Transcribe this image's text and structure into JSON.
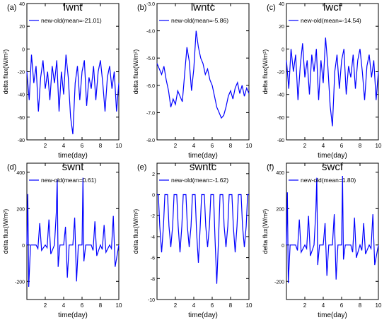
{
  "chart_data": [
    {
      "type": "line",
      "panel_label": "(a)",
      "title": "lwnt",
      "xlabel": "time(day)",
      "ylabel": "delta flux(W/m²)",
      "xlim": [
        0,
        10
      ],
      "ylim": [
        -80,
        40
      ],
      "xticks": [
        "2",
        "4",
        "6",
        "8",
        "10"
      ],
      "xtick_values": [
        2,
        4,
        6,
        8,
        10
      ],
      "yticks": [
        "40",
        "20",
        "0",
        "-20",
        "-40",
        "-60",
        "-80"
      ],
      "ytick_values": [
        40,
        20,
        0,
        -20,
        -40,
        -60,
        -80
      ],
      "legend": "new-old(mean=-21.01)",
      "legend_position": "top-left",
      "color": "#0000ff",
      "series": [
        {
          "x": [
            0.0,
            0.25,
            0.5,
            0.75,
            1.0,
            1.25,
            1.5,
            1.75,
            2.0,
            2.25,
            2.5,
            2.75,
            3.0,
            3.25,
            3.5,
            3.75,
            4.0,
            4.25,
            4.5,
            4.75,
            5.0,
            5.25,
            5.5,
            5.75,
            6.0,
            6.25,
            6.5,
            6.75,
            7.0,
            7.25,
            7.5,
            7.75,
            8.0,
            8.25,
            8.5,
            8.75,
            9.0,
            9.25,
            9.5,
            9.75,
            10.0
          ],
          "y": [
            -20,
            -45,
            -5,
            -30,
            -15,
            -55,
            -25,
            -10,
            -35,
            -20,
            -45,
            -15,
            -30,
            -10,
            -55,
            -20,
            -40,
            -5,
            -25,
            -60,
            -75,
            -30,
            -15,
            -45,
            -20,
            -10,
            -50,
            -25,
            -35,
            -15,
            -45,
            -20,
            -10,
            -30,
            -55,
            -25,
            -15,
            -35,
            -20,
            -55,
            -30
          ]
        }
      ]
    },
    {
      "type": "line",
      "panel_label": "(b)",
      "title": "lwntc",
      "xlabel": "time(day)",
      "ylabel": "delta flux(W/m²)",
      "xlim": [
        0,
        10
      ],
      "ylim": [
        -8.0,
        -3.0
      ],
      "xticks": [
        "2",
        "4",
        "6",
        "8",
        "10"
      ],
      "xtick_values": [
        2,
        4,
        6,
        8,
        10
      ],
      "yticks": [
        "-3.0",
        "-4.0",
        "-5.0",
        "-6.0",
        "-7.0",
        "-8.0"
      ],
      "ytick_values": [
        -3,
        -4,
        -5,
        -6,
        -7,
        -8
      ],
      "legend": "new-old(mean=-5.86)",
      "legend_position": "top-left",
      "color": "#0000ff",
      "series": [
        {
          "x": [
            0.0,
            0.25,
            0.5,
            0.75,
            1.0,
            1.25,
            1.5,
            1.75,
            2.0,
            2.25,
            2.5,
            2.75,
            3.0,
            3.25,
            3.5,
            3.75,
            4.0,
            4.25,
            4.5,
            4.75,
            5.0,
            5.25,
            5.5,
            5.75,
            6.0,
            6.25,
            6.5,
            6.75,
            7.0,
            7.25,
            7.5,
            7.75,
            8.0,
            8.25,
            8.5,
            8.75,
            9.0,
            9.25,
            9.5,
            9.75,
            10.0
          ],
          "y": [
            -5.2,
            -5.4,
            -5.6,
            -5.3,
            -5.8,
            -6.2,
            -6.8,
            -6.5,
            -6.7,
            -6.2,
            -6.4,
            -6.6,
            -5.6,
            -4.6,
            -5.1,
            -6.2,
            -5.4,
            -4.0,
            -4.6,
            -5.0,
            -5.2,
            -5.6,
            -5.4,
            -5.8,
            -6.0,
            -6.4,
            -6.8,
            -7.0,
            -7.2,
            -7.1,
            -6.8,
            -6.4,
            -6.2,
            -6.5,
            -6.1,
            -5.9,
            -6.3,
            -6.0,
            -6.4,
            -6.1,
            -6.3
          ]
        }
      ]
    },
    {
      "type": "line",
      "panel_label": "(c)",
      "title": "lwcf",
      "xlabel": "time(day)",
      "ylabel": "delta flux(W/m²)",
      "xlim": [
        0,
        10
      ],
      "ylim": [
        -80,
        40
      ],
      "xticks": [
        "2",
        "4",
        "6",
        "8",
        "10"
      ],
      "xtick_values": [
        2,
        4,
        6,
        8,
        10
      ],
      "yticks": [
        "40",
        "20",
        "0",
        "-20",
        "-40",
        "-60",
        "-80"
      ],
      "ytick_values": [
        40,
        20,
        0,
        -20,
        -40,
        -60,
        -80
      ],
      "legend": "new-old(mean=-14.54)",
      "legend_position": "top-left",
      "color": "#0000ff",
      "series": [
        {
          "x": [
            0.0,
            0.25,
            0.5,
            0.75,
            1.0,
            1.25,
            1.5,
            1.75,
            2.0,
            2.25,
            2.5,
            2.75,
            3.0,
            3.25,
            3.5,
            3.75,
            4.0,
            4.25,
            4.5,
            4.75,
            5.0,
            5.25,
            5.5,
            5.75,
            6.0,
            6.25,
            6.5,
            6.75,
            7.0,
            7.25,
            7.5,
            7.75,
            8.0,
            8.25,
            8.5,
            8.75,
            9.0,
            9.25,
            9.5,
            9.75,
            10.0
          ],
          "y": [
            -10,
            -35,
            0,
            -20,
            -5,
            -45,
            -15,
            5,
            -25,
            -10,
            -40,
            -5,
            -20,
            0,
            -45,
            -10,
            -30,
            10,
            -15,
            -50,
            -68,
            -20,
            -5,
            -35,
            -10,
            0,
            -40,
            -15,
            -25,
            -5,
            -35,
            -10,
            0,
            -20,
            -45,
            -15,
            -5,
            -25,
            -10,
            -45,
            -20
          ]
        }
      ]
    },
    {
      "type": "line",
      "panel_label": "(d)",
      "title": "swnt",
      "xlabel": "time(day)",
      "ylabel": "delta flux(W/m²)",
      "xlim": [
        0,
        10
      ],
      "ylim": [
        -300,
        450
      ],
      "xticks": [
        "2",
        "4",
        "6",
        "8",
        "10"
      ],
      "xtick_values": [
        2,
        4,
        6,
        8,
        10
      ],
      "yticks": [
        "400",
        "200",
        "0",
        "-200"
      ],
      "ytick_values": [
        400,
        200,
        0,
        -200
      ],
      "legend": "new-old(mean=0.61)",
      "legend_position": "top-left",
      "color": "#0000ff",
      "series": [
        {
          "x": [
            0.0,
            0.1,
            0.2,
            0.4,
            0.6,
            1.0,
            1.2,
            1.4,
            1.6,
            2.0,
            2.2,
            2.4,
            2.6,
            3.0,
            3.2,
            3.3,
            3.4,
            3.6,
            4.0,
            4.2,
            4.4,
            4.6,
            5.0,
            5.2,
            5.4,
            5.6,
            6.0,
            6.1,
            6.2,
            6.4,
            6.6,
            7.0,
            7.2,
            7.4,
            7.6,
            8.0,
            8.2,
            8.4,
            8.6,
            9.0,
            9.2,
            9.4,
            9.6,
            10.0
          ],
          "y": [
            0,
            280,
            -230,
            0,
            0,
            0,
            -20,
            120,
            -30,
            0,
            -15,
            140,
            -50,
            0,
            180,
            360,
            -120,
            0,
            0,
            100,
            -180,
            0,
            0,
            150,
            -200,
            0,
            0,
            370,
            -90,
            0,
            0,
            0,
            -30,
            130,
            -60,
            0,
            -25,
            110,
            -40,
            0,
            -20,
            160,
            -120,
            0
          ]
        }
      ]
    },
    {
      "type": "line",
      "panel_label": "(e)",
      "title": "swntc",
      "xlabel": "time(day)",
      "ylabel": "delta flux(W/m²)",
      "xlim": [
        0,
        10
      ],
      "ylim": [
        -10,
        3
      ],
      "xticks": [
        "2",
        "4",
        "6",
        "8",
        "10"
      ],
      "xtick_values": [
        2,
        4,
        6,
        8,
        10
      ],
      "yticks": [
        "2",
        "0",
        "-2",
        "-4",
        "-6",
        "-8",
        "-10"
      ],
      "ytick_values": [
        2,
        0,
        -2,
        -4,
        -6,
        -8,
        -10
      ],
      "legend": "new-old(mean=-1.62)",
      "legend_position": "top-left",
      "color": "#0000ff",
      "series": [
        {
          "x": [
            0.0,
            0.15,
            0.3,
            0.5,
            0.7,
            0.85,
            1.0,
            1.15,
            1.3,
            1.5,
            1.7,
            1.85,
            2.0,
            2.15,
            2.3,
            2.5,
            2.7,
            2.85,
            3.0,
            3.15,
            3.3,
            3.5,
            3.7,
            3.85,
            4.0,
            4.15,
            4.3,
            4.5,
            4.7,
            4.85,
            5.0,
            5.15,
            5.3,
            5.5,
            5.7,
            5.85,
            6.0,
            6.15,
            6.3,
            6.5,
            6.7,
            6.85,
            7.0,
            7.15,
            7.3,
            7.5,
            7.7,
            7.85,
            8.0,
            8.15,
            8.3,
            8.5,
            8.7,
            8.85,
            9.0,
            9.15,
            9.3,
            9.5,
            9.7,
            9.85,
            10.0
          ],
          "y": [
            0,
            0,
            -3,
            -5.5,
            -3,
            0,
            0,
            0,
            -3,
            -5,
            -3,
            0,
            0,
            0,
            -3,
            -5.5,
            -3,
            0,
            0,
            0,
            -3,
            -5,
            -3,
            0,
            0,
            0,
            -3.5,
            -6.5,
            -3,
            0,
            0,
            0,
            -3,
            -5,
            -3,
            0,
            0,
            0,
            -4,
            -8.5,
            -4,
            0,
            0,
            0,
            -3,
            -5,
            -3,
            0,
            0,
            0,
            -3,
            -5.5,
            -3,
            0,
            0,
            0,
            -3,
            -5,
            -3,
            0,
            0
          ]
        }
      ]
    },
    {
      "type": "line",
      "panel_label": "(f)",
      "title": "swcf",
      "xlabel": "time(day)",
      "ylabel": "delta flux(W/m²)",
      "xlim": [
        0,
        10
      ],
      "ylim": [
        -300,
        450
      ],
      "xticks": [
        "2",
        "4",
        "6",
        "8",
        "10"
      ],
      "xtick_values": [
        2,
        4,
        6,
        8,
        10
      ],
      "yticks": [
        "400",
        "200",
        "0",
        "-200"
      ],
      "ytick_values": [
        400,
        200,
        0,
        -200
      ],
      "legend": "new-old(mean=1.80)",
      "legend_position": "top-left",
      "color": "#0000ff",
      "series": [
        {
          "x": [
            0.0,
            0.1,
            0.2,
            0.4,
            0.6,
            1.0,
            1.2,
            1.4,
            1.6,
            2.0,
            2.2,
            2.4,
            2.6,
            3.0,
            3.2,
            3.3,
            3.4,
            3.6,
            4.0,
            4.2,
            4.4,
            4.6,
            5.0,
            5.2,
            5.4,
            5.6,
            6.0,
            6.1,
            6.2,
            6.4,
            6.6,
            7.0,
            7.2,
            7.4,
            7.6,
            8.0,
            8.2,
            8.4,
            8.6,
            9.0,
            9.2,
            9.4,
            9.6,
            10.0
          ],
          "y": [
            0,
            290,
            -210,
            0,
            0,
            0,
            -30,
            140,
            -40,
            0,
            -20,
            160,
            -60,
            0,
            190,
            370,
            -110,
            0,
            0,
            120,
            -170,
            0,
            0,
            170,
            -190,
            0,
            0,
            380,
            -80,
            0,
            0,
            0,
            -40,
            150,
            -70,
            0,
            -30,
            120,
            -50,
            0,
            -20,
            170,
            -110,
            0
          ]
        }
      ]
    }
  ]
}
